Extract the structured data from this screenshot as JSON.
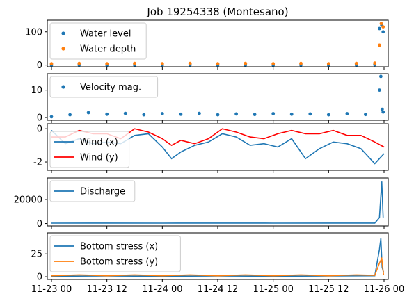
{
  "chart_data": [
    {
      "type": "scatter",
      "title": "Job 19254338 (Montesano)",
      "xlim": [
        "11-23 00",
        "11-26 00"
      ],
      "ylim": [
        -5,
        135
      ],
      "yticks": [
        0,
        100
      ],
      "legend_position": "top-left",
      "series": [
        {
          "name": "Water level",
          "color": "#1f77b4",
          "style": "points",
          "points": [
            [
              "11-23 00",
              0
            ],
            [
              "11-23 06",
              0.5
            ],
            [
              "11-23 12",
              0
            ],
            [
              "11-23 18",
              0.5
            ],
            [
              "11-24 00",
              0
            ],
            [
              "11-24 06",
              0.5
            ],
            [
              "11-24 12",
              0
            ],
            [
              "11-24 18",
              0.5
            ],
            [
              "11-25 00",
              0
            ],
            [
              "11-25 06",
              0.5
            ],
            [
              "11-25 12",
              0
            ],
            [
              "11-25 18",
              0.5
            ],
            [
              "11-25 22",
              1
            ],
            [
              "11-25 23",
              110
            ],
            [
              "11-25 23.5",
              120
            ],
            [
              "11-25 23.8",
              100
            ]
          ]
        },
        {
          "name": "Water depth",
          "color": "#ff7f0e",
          "style": "points",
          "points": [
            [
              "11-23 00",
              4
            ],
            [
              "11-23 06",
              5
            ],
            [
              "11-23 12",
              4
            ],
            [
              "11-23 18",
              5
            ],
            [
              "11-24 00",
              4
            ],
            [
              "11-24 06",
              5
            ],
            [
              "11-24 12",
              4
            ],
            [
              "11-24 18",
              5
            ],
            [
              "11-25 00",
              4
            ],
            [
              "11-25 06",
              5
            ],
            [
              "11-25 12",
              4
            ],
            [
              "11-25 18",
              5
            ],
            [
              "11-25 22",
              6
            ],
            [
              "11-25 23",
              60
            ],
            [
              "11-25 23.4",
              125
            ],
            [
              "11-25 23.8",
              115
            ]
          ]
        }
      ]
    },
    {
      "type": "scatter",
      "xlim": [
        "11-23 00",
        "11-26 00"
      ],
      "ylim": [
        -1,
        16
      ],
      "yticks": [
        0,
        10
      ],
      "legend_position": "top-left",
      "series": [
        {
          "name": "Velocity mag.",
          "color": "#1f77b4",
          "style": "points",
          "points": [
            [
              "11-23 00",
              0.3
            ],
            [
              "11-23 04",
              1.0
            ],
            [
              "11-23 08",
              1.8
            ],
            [
              "11-23 12",
              1.2
            ],
            [
              "11-23 16",
              1.5
            ],
            [
              "11-23 20",
              1.0
            ],
            [
              "11-24 00",
              1.4
            ],
            [
              "11-24 04",
              1.2
            ],
            [
              "11-24 08",
              1.5
            ],
            [
              "11-24 12",
              1.0
            ],
            [
              "11-24 16",
              1.3
            ],
            [
              "11-24 20",
              1.1
            ],
            [
              "11-25 00",
              1.4
            ],
            [
              "11-25 04",
              1.2
            ],
            [
              "11-25 08",
              1.3
            ],
            [
              "11-25 12",
              1.0
            ],
            [
              "11-25 16",
              1.4
            ],
            [
              "11-25 20",
              1.1
            ],
            [
              "11-25 23",
              10
            ],
            [
              "11-25 23.3",
              15
            ],
            [
              "11-25 23.6",
              3
            ],
            [
              "11-25 23.8",
              2
            ]
          ]
        }
      ]
    },
    {
      "type": "line",
      "xlim": [
        "11-23 00",
        "11-26 00"
      ],
      "ylim": [
        -2.5,
        0.3
      ],
      "yticks": [
        -2,
        0
      ],
      "legend_position": "bottom-left",
      "series": [
        {
          "name": "Wind (x)",
          "color": "#1f77b4",
          "points": [
            [
              "11-23 00",
              -0.1
            ],
            [
              "11-23 03",
              -0.9
            ],
            [
              "11-23 06",
              -0.6
            ],
            [
              "11-23 09",
              -0.9
            ],
            [
              "11-23 12",
              -0.8
            ],
            [
              "11-23 15",
              -0.9
            ],
            [
              "11-23 18",
              -0.4
            ],
            [
              "11-23 21",
              -0.3
            ],
            [
              "11-24 00",
              -1.1
            ],
            [
              "11-24 02",
              -1.8
            ],
            [
              "11-24 04",
              -1.4
            ],
            [
              "11-24 07",
              -1.0
            ],
            [
              "11-24 10",
              -0.8
            ],
            [
              "11-24 13",
              -0.3
            ],
            [
              "11-24 16",
              -0.5
            ],
            [
              "11-24 19",
              -1.0
            ],
            [
              "11-24 22",
              -0.9
            ],
            [
              "11-25 01",
              -1.1
            ],
            [
              "11-25 04",
              -0.6
            ],
            [
              "11-25 07",
              -1.8
            ],
            [
              "11-25 10",
              -1.2
            ],
            [
              "11-25 13",
              -0.8
            ],
            [
              "11-25 16",
              -0.9
            ],
            [
              "11-25 19",
              -1.2
            ],
            [
              "11-25 22",
              -2.1
            ],
            [
              "11-25 24",
              -1.5
            ]
          ]
        },
        {
          "name": "Wind (y)",
          "color": "#ff0000",
          "points": [
            [
              "11-23 00",
              -0.5
            ],
            [
              "11-23 03",
              -0.5
            ],
            [
              "11-23 06",
              -0.1
            ],
            [
              "11-23 09",
              -0.3
            ],
            [
              "11-23 12",
              -0.3
            ],
            [
              "11-23 15",
              -0.6
            ],
            [
              "11-23 18",
              0.0
            ],
            [
              "11-23 21",
              -0.2
            ],
            [
              "11-24 00",
              -0.6
            ],
            [
              "11-24 02",
              -1.0
            ],
            [
              "11-24 04",
              -0.7
            ],
            [
              "11-24 07",
              -0.9
            ],
            [
              "11-24 10",
              -0.6
            ],
            [
              "11-24 13",
              0.0
            ],
            [
              "11-24 16",
              -0.2
            ],
            [
              "11-24 19",
              -0.5
            ],
            [
              "11-24 22",
              -0.6
            ],
            [
              "11-25 01",
              -0.3
            ],
            [
              "11-25 04",
              -0.1
            ],
            [
              "11-25 07",
              -0.3
            ],
            [
              "11-25 10",
              -0.3
            ],
            [
              "11-25 13",
              -0.1
            ],
            [
              "11-25 16",
              -0.4
            ],
            [
              "11-25 19",
              -0.4
            ],
            [
              "11-25 22",
              -0.8
            ],
            [
              "11-25 24",
              -1.1
            ]
          ]
        }
      ]
    },
    {
      "type": "line",
      "xlim": [
        "11-23 00",
        "11-26 00"
      ],
      "ylim": [
        -2000,
        38000
      ],
      "yticks": [
        0,
        20000
      ],
      "legend_position": "top-left",
      "series": [
        {
          "name": "Discharge",
          "color": "#1f77b4",
          "points": [
            [
              "11-23 00",
              300
            ],
            [
              "11-23 12",
              350
            ],
            [
              "11-24 00",
              300
            ],
            [
              "11-24 12",
              350
            ],
            [
              "11-25 00",
              300
            ],
            [
              "11-25 12",
              350
            ],
            [
              "11-25 22",
              400
            ],
            [
              "11-25 23",
              5000
            ],
            [
              "11-25 23.5",
              35000
            ],
            [
              "11-25 23.8",
              5000
            ]
          ]
        }
      ]
    },
    {
      "type": "line",
      "xlim": [
        "11-23 00",
        "11-26 00"
      ],
      "ylim": [
        -3,
        48
      ],
      "yticks": [
        0,
        25
      ],
      "legend_position": "top-left",
      "xticks": [
        "11-23 00",
        "11-23 12",
        "11-24 00",
        "11-24 12",
        "11-25 00",
        "11-25 12",
        "11-26 00"
      ],
      "series": [
        {
          "name": "Bottom stress (x)",
          "color": "#1f77b4",
          "points": [
            [
              "11-23 00",
              0.5
            ],
            [
              "11-23 12",
              0.8
            ],
            [
              "11-24 00",
              0.5
            ],
            [
              "11-24 12",
              0.8
            ],
            [
              "11-25 00",
              0.5
            ],
            [
              "11-25 12",
              0.8
            ],
            [
              "11-25 22",
              1.0
            ],
            [
              "11-25 23",
              30
            ],
            [
              "11-25 23.3",
              42
            ],
            [
              "11-25 23.6",
              10
            ],
            [
              "11-25 23.9",
              5
            ]
          ]
        },
        {
          "name": "Bottom stress (y)",
          "color": "#ff7f0e",
          "points": [
            [
              "11-23 00",
              1
            ],
            [
              "11-23 06",
              2
            ],
            [
              "11-23 12",
              1
            ],
            [
              "11-23 18",
              2
            ],
            [
              "11-24 00",
              1
            ],
            [
              "11-24 06",
              2
            ],
            [
              "11-24 12",
              1
            ],
            [
              "11-24 18",
              2
            ],
            [
              "11-25 00",
              1
            ],
            [
              "11-25 06",
              2
            ],
            [
              "11-25 12",
              1
            ],
            [
              "11-25 18",
              2
            ],
            [
              "11-25 22",
              1.5
            ],
            [
              "11-25 23",
              15
            ],
            [
              "11-25 23.5",
              20
            ],
            [
              "11-25 23.9",
              2
            ]
          ]
        }
      ]
    }
  ]
}
